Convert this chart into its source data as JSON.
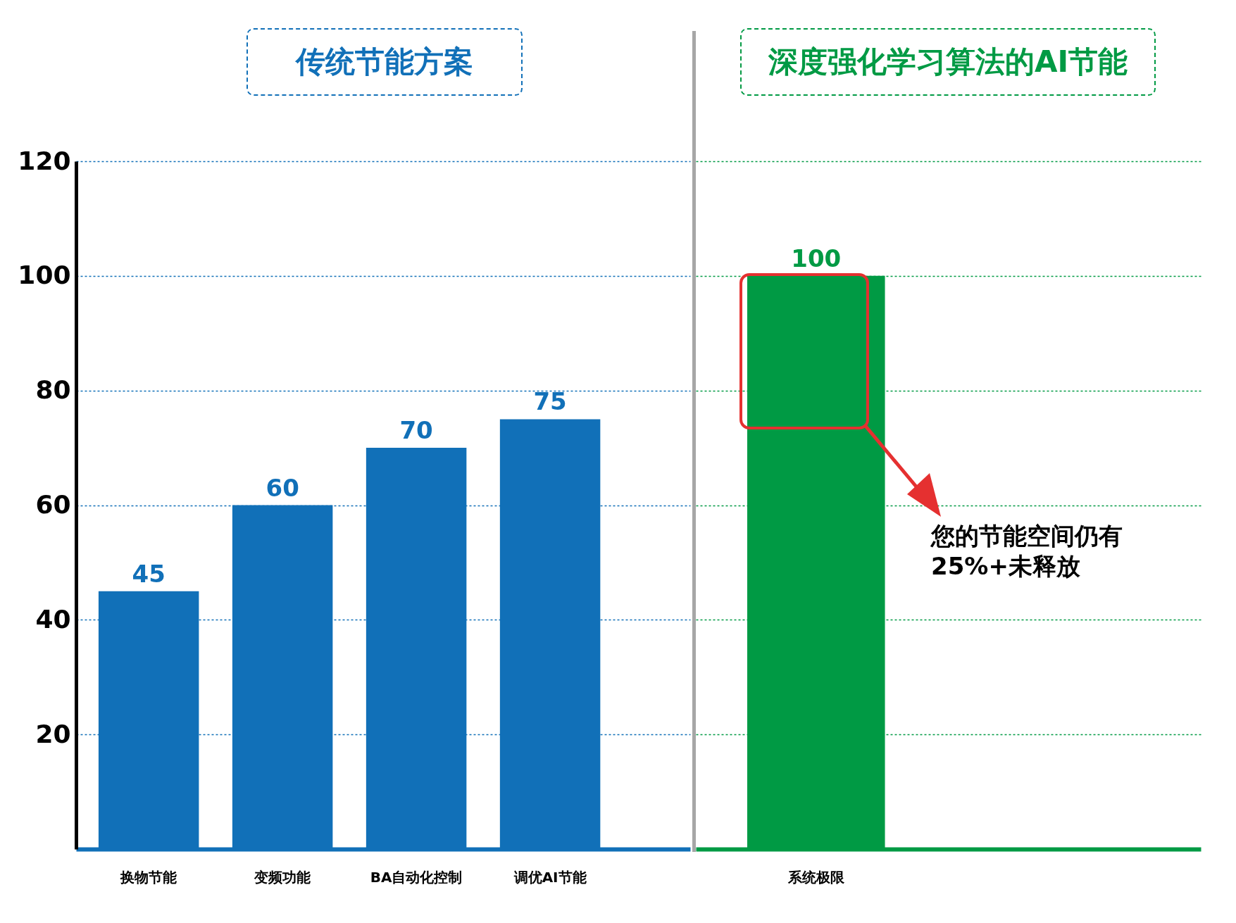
{
  "chart_data": [
    {
      "type": "bar",
      "title": "传统节能方案",
      "categories": [
        "换物节能",
        "变频功能",
        "BA自动化控制",
        "调优AI节能"
      ],
      "values": [
        45,
        60,
        70,
        75
      ],
      "color": "#1170b8",
      "ylim": [
        0,
        120
      ],
      "yticks": [
        20,
        40,
        60,
        80,
        100,
        120
      ],
      "grid": "y",
      "data_labels": true
    },
    {
      "type": "bar",
      "title": "深度强化学习算法的AI节能",
      "categories": [
        "系统极限"
      ],
      "values": [
        100
      ],
      "color": "#009a44",
      "ylim": [
        0,
        120
      ],
      "yticks": [
        20,
        40,
        60,
        80,
        100,
        120
      ],
      "grid": "y",
      "data_labels": true,
      "tick_labels": "x",
      "annotations": [
        "您的节能空间仍有25%+未释放"
      ]
    }
  ]
}
